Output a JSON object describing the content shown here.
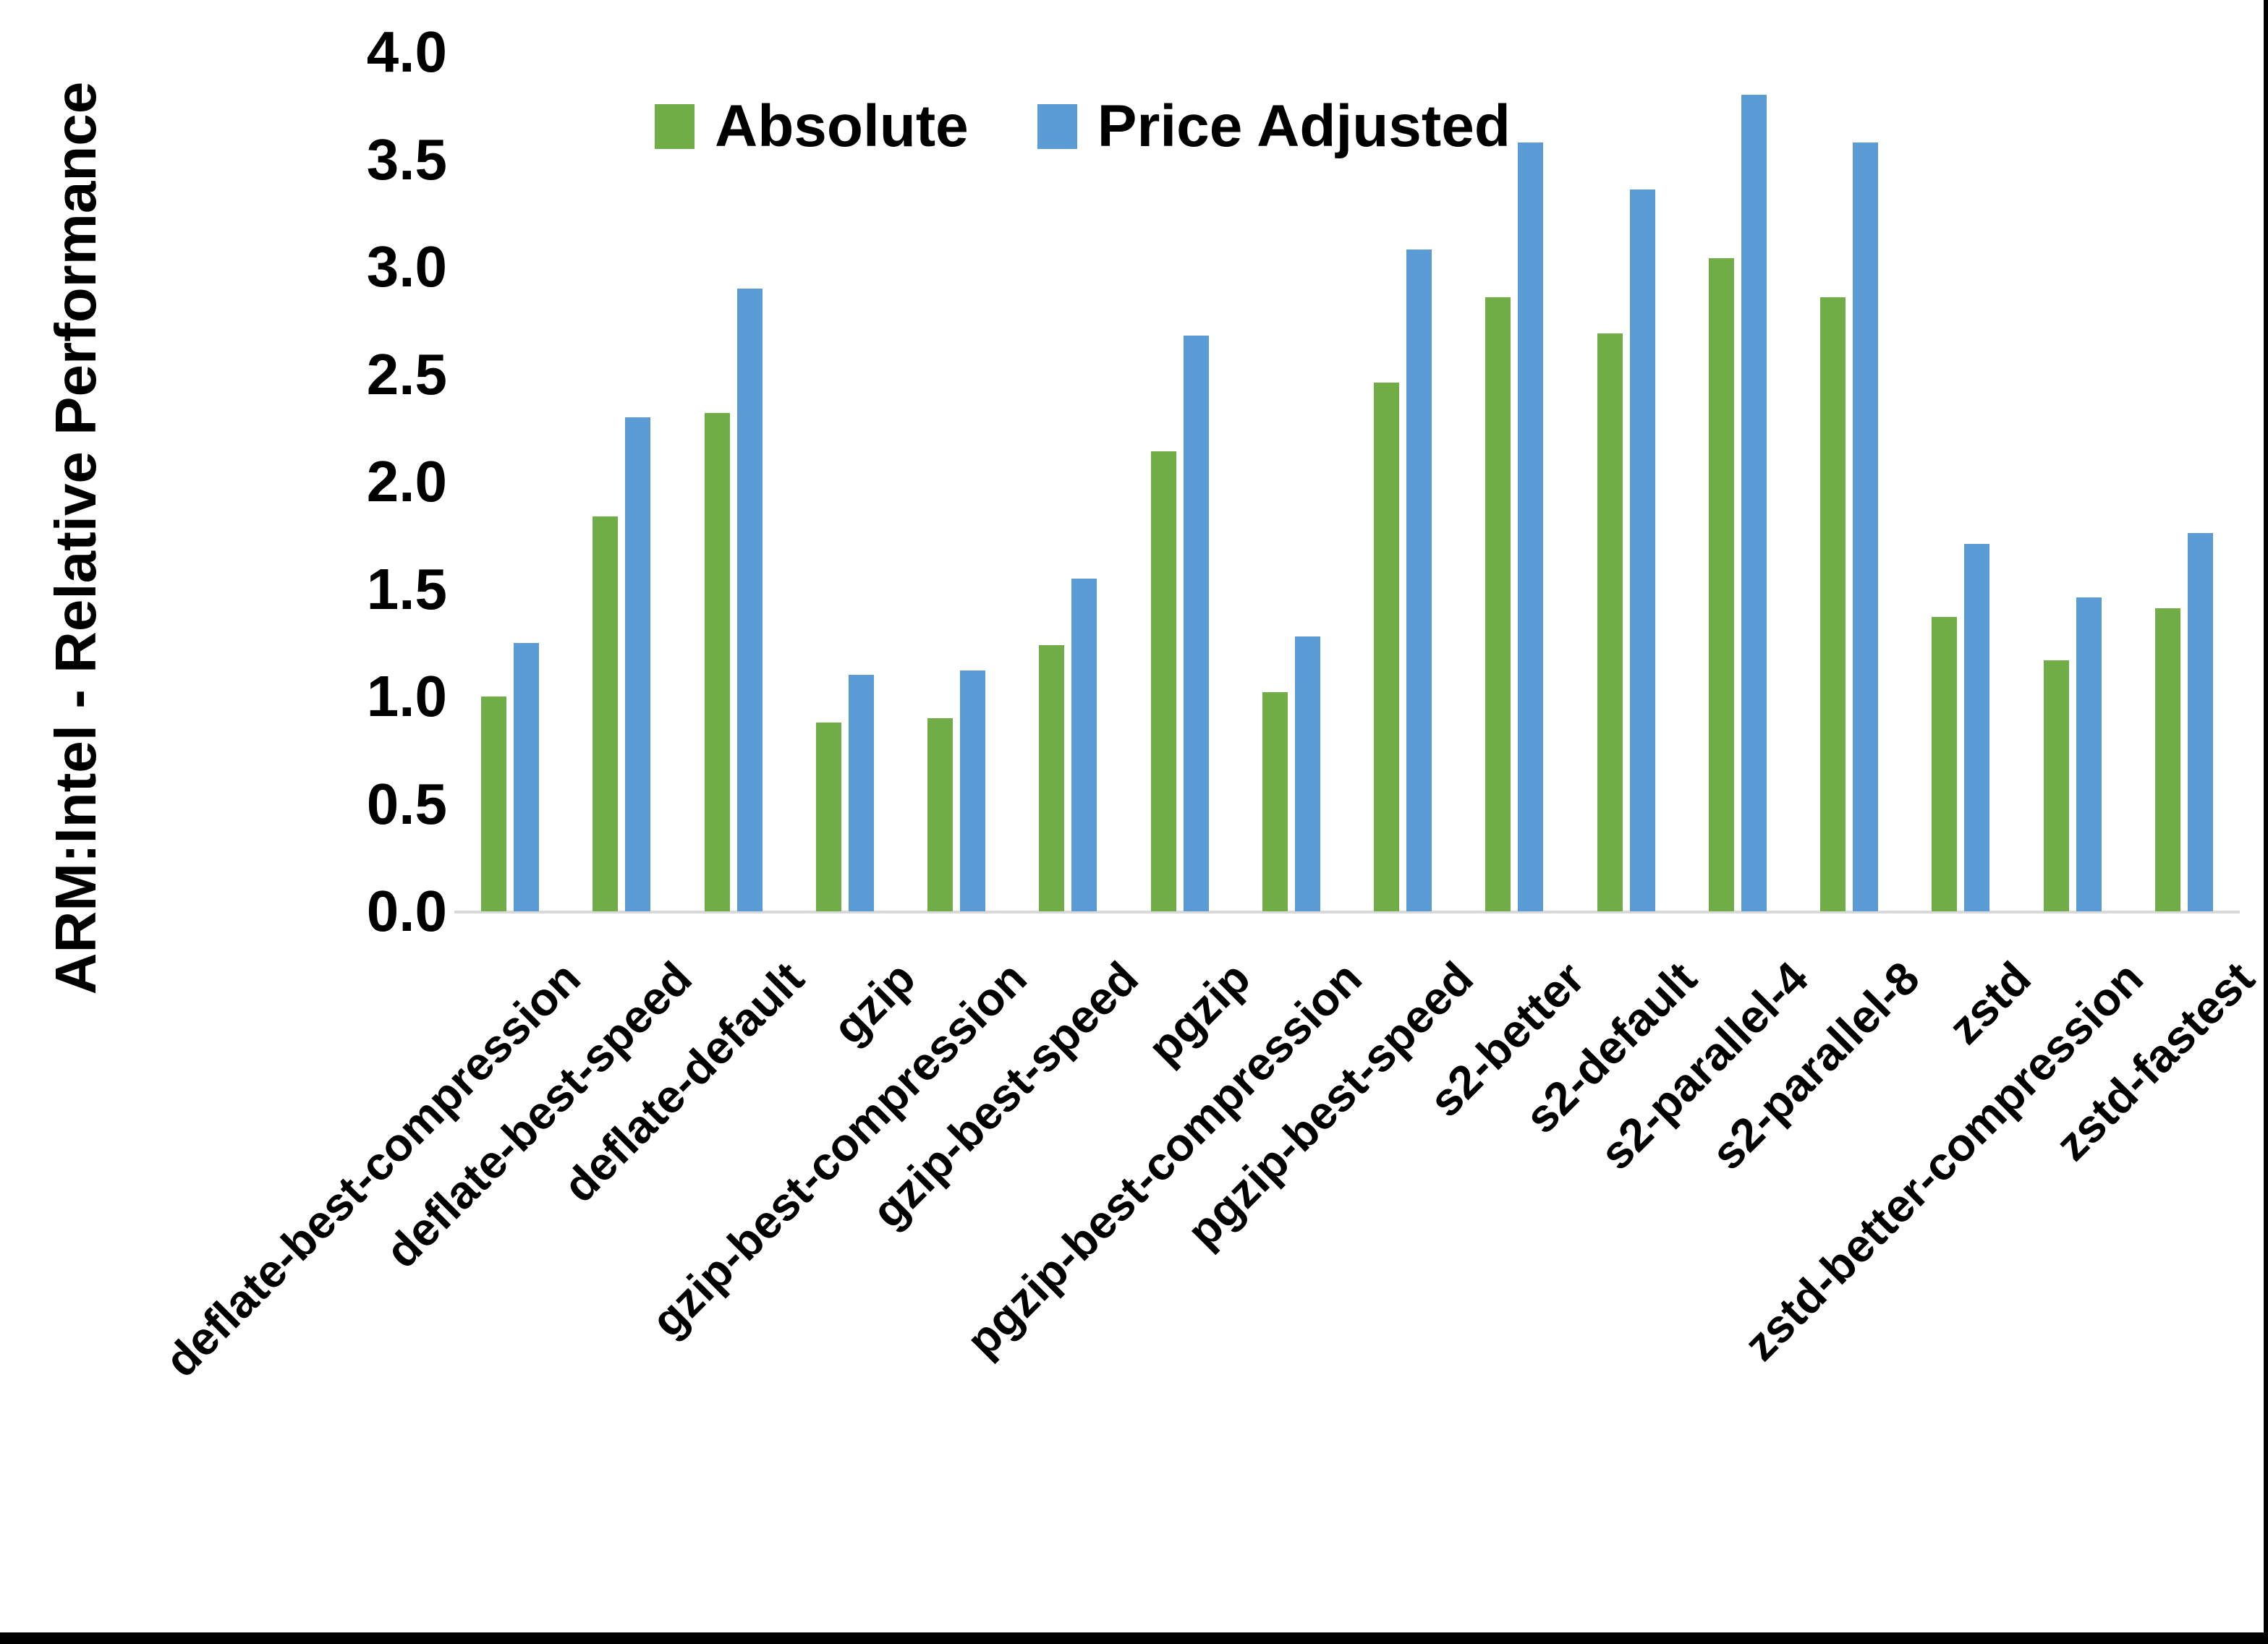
{
  "figure": {
    "background": "#ffffff",
    "right_border_color": "#000000",
    "bottom_border_color": "#000000"
  },
  "axis": {
    "baseline_color": "#d9d9d9",
    "text_color": "#000000",
    "y_title": "ARM:Intel - Relative Performance",
    "yticks": [
      "0.0",
      "0.5",
      "1.0",
      "1.5",
      "2.0",
      "2.5",
      "3.0",
      "3.5",
      "4.0"
    ]
  },
  "legend": {
    "items": [
      {
        "label": "Absolute",
        "color": "#70AD47"
      },
      {
        "label": "Price Adjusted",
        "color": "#5B9BD5"
      }
    ]
  },
  "chart_data": {
    "type": "bar",
    "title": "",
    "xlabel": "",
    "ylabel": "ARM:Intel - Relative Performance",
    "ylim": [
      0.0,
      4.0
    ],
    "ytick_step": 0.5,
    "grid": false,
    "legend_position": "top-center",
    "categories": [
      "deflate-best-compression",
      "deflate-best-speed",
      "deflate-default",
      "gzip",
      "gzip-best-compression",
      "gzip-best-speed",
      "pgzip",
      "pgzip-best-compression",
      "pgzip-best-speed",
      "s2-better",
      "s2-default",
      "s2-parallel-4",
      "s2-parallel-8",
      "zstd",
      "zstd-better-compression",
      "zstd-fastest"
    ],
    "series": [
      {
        "name": "Absolute",
        "color": "#70AD47",
        "values": [
          1.0,
          1.84,
          2.32,
          0.88,
          0.9,
          1.24,
          2.14,
          1.02,
          2.46,
          2.86,
          2.69,
          3.04,
          2.86,
          1.37,
          1.17,
          1.41
        ]
      },
      {
        "name": "Price Adjusted",
        "color": "#5B9BD5",
        "values": [
          1.25,
          2.3,
          2.9,
          1.1,
          1.12,
          1.55,
          2.68,
          1.28,
          3.08,
          3.58,
          3.36,
          3.8,
          3.58,
          1.71,
          1.46,
          1.76
        ]
      }
    ]
  }
}
